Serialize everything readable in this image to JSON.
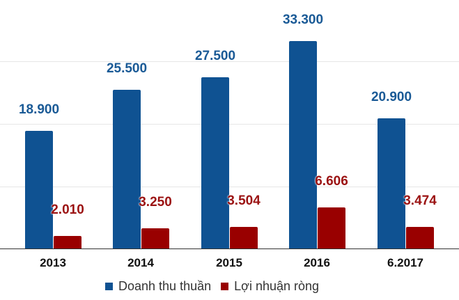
{
  "chart_data": {
    "type": "bar",
    "title": "",
    "xlabel": "",
    "ylabel": "",
    "categories": [
      "2013",
      "2014",
      "2015",
      "2016",
      "6.2017"
    ],
    "series": [
      {
        "name": "Doanh thu thuần",
        "color": "#0f5292",
        "values": [
          18900,
          25500,
          27500,
          33300,
          20900
        ],
        "labels": [
          "18.900",
          "25.500",
          "27.500",
          "33.300",
          "20.900"
        ]
      },
      {
        "name": "Lợi nhuận ròng",
        "color": "#990000",
        "values": [
          2010,
          3250,
          3504,
          6606,
          3474
        ],
        "labels": [
          "2.010",
          "3.250",
          "3.504",
          "6.606",
          "3.474"
        ]
      }
    ],
    "ylim": [
      0,
      40000
    ],
    "grid": true,
    "gridlines": [
      10000,
      20000,
      30000
    ],
    "legend_position": "bottom"
  },
  "legend": {
    "items": [
      {
        "label": "Doanh thu thuần",
        "color": "#0f5292"
      },
      {
        "label": "Lợi nhuận ròng",
        "color": "#990000"
      }
    ]
  }
}
